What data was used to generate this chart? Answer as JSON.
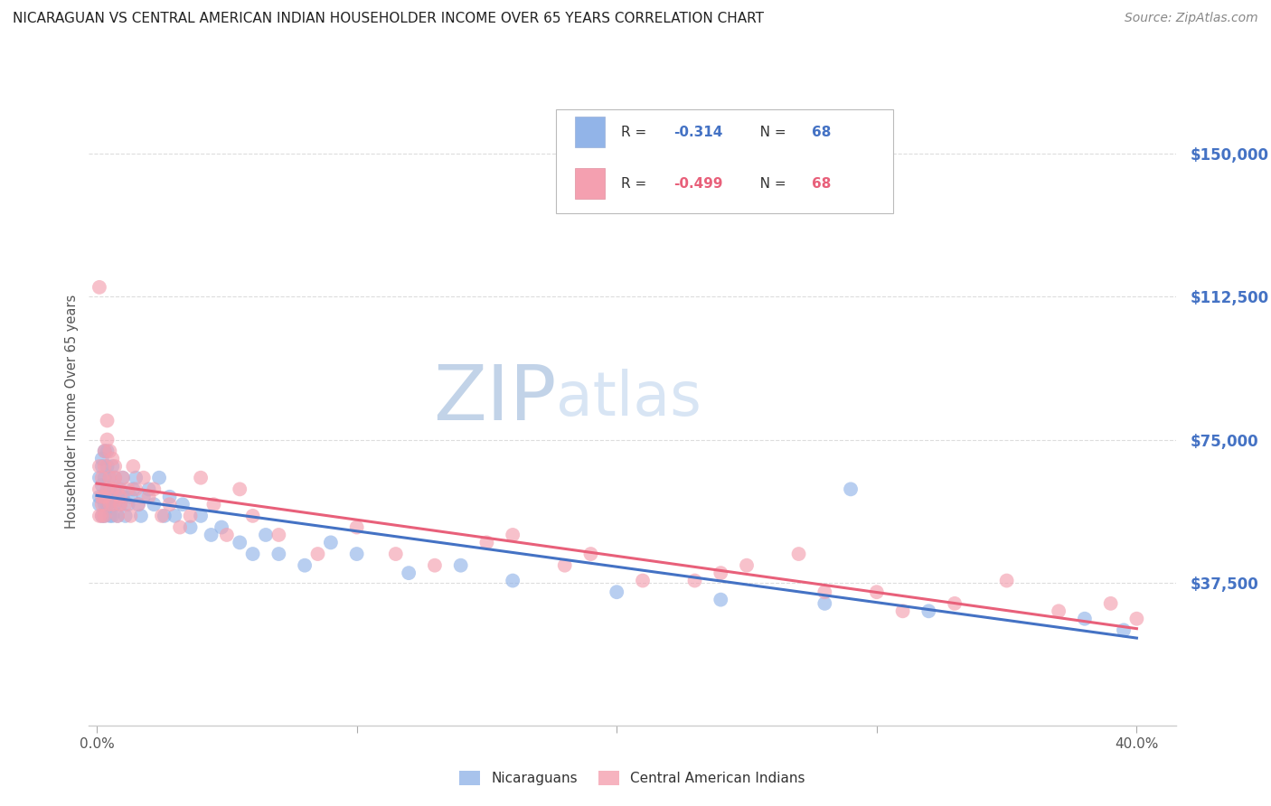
{
  "title": "NICARAGUAN VS CENTRAL AMERICAN INDIAN HOUSEHOLDER INCOME OVER 65 YEARS CORRELATION CHART",
  "source": "Source: ZipAtlas.com",
  "ylabel": "Householder Income Over 65 years",
  "xlabel_ticks": [
    "0.0%",
    "",
    "",
    "",
    "40.0%"
  ],
  "xlabel_vals": [
    0.0,
    0.1,
    0.2,
    0.3,
    0.4
  ],
  "ytick_labels": [
    "$37,500",
    "$75,000",
    "$112,500",
    "$150,000"
  ],
  "ytick_vals": [
    37500,
    75000,
    112500,
    150000
  ],
  "ylim": [
    0,
    165000
  ],
  "xlim": [
    -0.003,
    0.415
  ],
  "legend_label_blue": "Nicaraguans",
  "legend_label_pink": "Central American Indians",
  "blue_color": "#92b4e8",
  "pink_color": "#f4a0b0",
  "line_blue": "#4472c4",
  "line_pink": "#e8607a",
  "ytick_color": "#4472c4",
  "xtick_color": "#555555",
  "background_color": "#ffffff",
  "grid_color": "#dddddd",
  "watermark_zip_color": "#c5d5ea",
  "watermark_atlas_color": "#c5d5ea",
  "blue_scatter_x": [
    0.001,
    0.001,
    0.001,
    0.002,
    0.002,
    0.002,
    0.002,
    0.003,
    0.003,
    0.003,
    0.003,
    0.003,
    0.004,
    0.004,
    0.004,
    0.004,
    0.005,
    0.005,
    0.005,
    0.005,
    0.006,
    0.006,
    0.006,
    0.007,
    0.007,
    0.007,
    0.008,
    0.008,
    0.009,
    0.009,
    0.01,
    0.01,
    0.011,
    0.012,
    0.013,
    0.014,
    0.015,
    0.016,
    0.017,
    0.018,
    0.02,
    0.022,
    0.024,
    0.026,
    0.028,
    0.03,
    0.033,
    0.036,
    0.04,
    0.044,
    0.048,
    0.055,
    0.06,
    0.065,
    0.07,
    0.08,
    0.09,
    0.1,
    0.12,
    0.14,
    0.16,
    0.2,
    0.24,
    0.28,
    0.32,
    0.29,
    0.38,
    0.395
  ],
  "blue_scatter_y": [
    60000,
    65000,
    58000,
    70000,
    63000,
    55000,
    68000,
    72000,
    60000,
    65000,
    58000,
    55000,
    68000,
    62000,
    58000,
    72000,
    65000,
    58000,
    62000,
    55000,
    60000,
    68000,
    55000,
    62000,
    58000,
    65000,
    60000,
    55000,
    58000,
    62000,
    65000,
    60000,
    55000,
    58000,
    60000,
    62000,
    65000,
    58000,
    55000,
    60000,
    62000,
    58000,
    65000,
    55000,
    60000,
    55000,
    58000,
    52000,
    55000,
    50000,
    52000,
    48000,
    45000,
    50000,
    45000,
    42000,
    48000,
    45000,
    40000,
    42000,
    38000,
    35000,
    33000,
    32000,
    30000,
    62000,
    28000,
    25000
  ],
  "pink_scatter_x": [
    0.001,
    0.001,
    0.001,
    0.001,
    0.002,
    0.002,
    0.002,
    0.002,
    0.003,
    0.003,
    0.003,
    0.003,
    0.004,
    0.004,
    0.004,
    0.005,
    0.005,
    0.005,
    0.006,
    0.006,
    0.006,
    0.007,
    0.007,
    0.008,
    0.008,
    0.009,
    0.009,
    0.01,
    0.011,
    0.012,
    0.013,
    0.014,
    0.015,
    0.016,
    0.018,
    0.02,
    0.022,
    0.025,
    0.028,
    0.032,
    0.036,
    0.04,
    0.045,
    0.05,
    0.055,
    0.06,
    0.07,
    0.085,
    0.1,
    0.115,
    0.13,
    0.15,
    0.18,
    0.21,
    0.24,
    0.27,
    0.3,
    0.33,
    0.35,
    0.37,
    0.39,
    0.4,
    0.25,
    0.28,
    0.31,
    0.23,
    0.19,
    0.16
  ],
  "pink_scatter_y": [
    115000,
    62000,
    55000,
    68000,
    60000,
    65000,
    55000,
    58000,
    72000,
    68000,
    60000,
    55000,
    80000,
    75000,
    62000,
    72000,
    65000,
    58000,
    70000,
    62000,
    58000,
    68000,
    65000,
    62000,
    55000,
    60000,
    58000,
    65000,
    58000,
    62000,
    55000,
    68000,
    62000,
    58000,
    65000,
    60000,
    62000,
    55000,
    58000,
    52000,
    55000,
    65000,
    58000,
    50000,
    62000,
    55000,
    50000,
    45000,
    52000,
    45000,
    42000,
    48000,
    42000,
    38000,
    40000,
    45000,
    35000,
    32000,
    38000,
    30000,
    32000,
    28000,
    42000,
    35000,
    30000,
    38000,
    45000,
    50000
  ]
}
